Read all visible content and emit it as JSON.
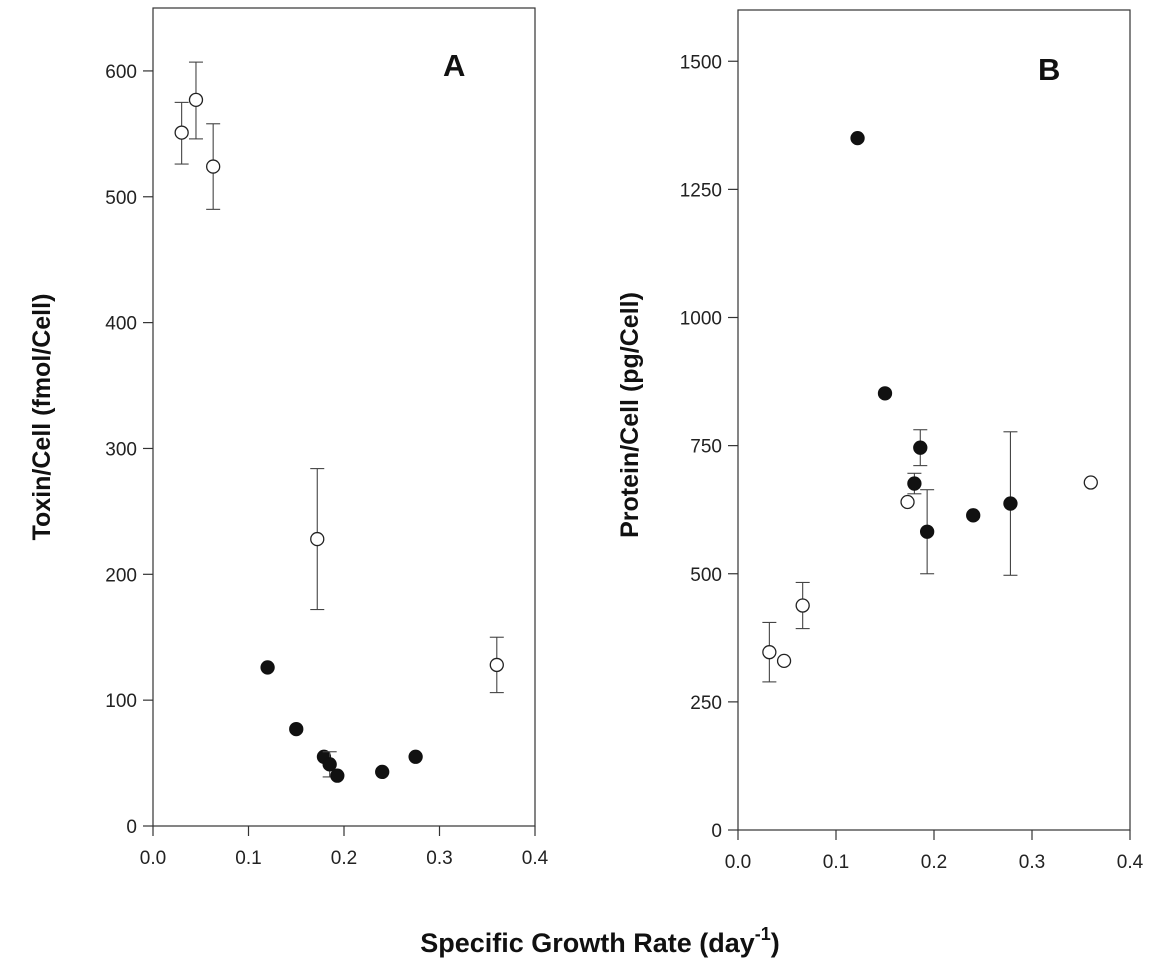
{
  "x_axis_label": "Specific Growth Rate (day",
  "x_axis_label_exponent": "-1",
  "x_axis_label_suffix": ")",
  "chart_data": [
    {
      "type": "scatter",
      "panel_label": "A",
      "ylabel": "Toxin/Cell (fmol/Cell)",
      "xlim": [
        0.0,
        0.4
      ],
      "ylim": [
        0,
        650
      ],
      "x_ticks": [
        "0.0",
        "0.1",
        "0.2",
        "0.3",
        "0.4"
      ],
      "y_ticks": [
        "0",
        "100",
        "200",
        "300",
        "400",
        "500",
        "600"
      ],
      "series": [
        {
          "marker": "open",
          "points": [
            {
              "x": 0.03,
              "y": 551,
              "err_lo": 25,
              "err_hi": 24
            },
            {
              "x": 0.045,
              "y": 577,
              "err_lo": 31,
              "err_hi": 30
            },
            {
              "x": 0.063,
              "y": 524,
              "err_lo": 34,
              "err_hi": 34
            },
            {
              "x": 0.172,
              "y": 228,
              "err_lo": 56,
              "err_hi": 56
            },
            {
              "x": 0.36,
              "y": 128,
              "err_lo": 22,
              "err_hi": 22
            }
          ]
        },
        {
          "marker": "filled",
          "points": [
            {
              "x": 0.12,
              "y": 126
            },
            {
              "x": 0.15,
              "y": 77
            },
            {
              "x": 0.179,
              "y": 55
            },
            {
              "x": 0.185,
              "y": 49,
              "err_lo": 10,
              "err_hi": 10
            },
            {
              "x": 0.193,
              "y": 40
            },
            {
              "x": 0.24,
              "y": 43
            },
            {
              "x": 0.275,
              "y": 55
            }
          ]
        }
      ]
    },
    {
      "type": "scatter",
      "panel_label": "B",
      "ylabel": "Protein/Cell (pg/Cell)",
      "xlim": [
        0.0,
        0.4
      ],
      "ylim": [
        0,
        1600
      ],
      "x_ticks": [
        "0.0",
        "0.1",
        "0.2",
        "0.3",
        "0.4"
      ],
      "y_ticks": [
        "0",
        "250",
        "500",
        "750",
        "1000",
        "1250",
        "1500"
      ],
      "series": [
        {
          "marker": "open",
          "points": [
            {
              "x": 0.032,
              "y": 347,
              "err_lo": 58,
              "err_hi": 58
            },
            {
              "x": 0.047,
              "y": 330
            },
            {
              "x": 0.066,
              "y": 438,
              "err_lo": 45,
              "err_hi": 45
            },
            {
              "x": 0.173,
              "y": 640
            },
            {
              "x": 0.36,
              "y": 678
            }
          ]
        },
        {
          "marker": "filled",
          "points": [
            {
              "x": 0.122,
              "y": 1350
            },
            {
              "x": 0.15,
              "y": 852
            },
            {
              "x": 0.18,
              "y": 676,
              "err_lo": 20,
              "err_hi": 20
            },
            {
              "x": 0.186,
              "y": 746,
              "err_lo": 35,
              "err_hi": 35
            },
            {
              "x": 0.193,
              "y": 582,
              "err_lo": 82,
              "err_hi": 82
            },
            {
              "x": 0.24,
              "y": 614
            },
            {
              "x": 0.278,
              "y": 637,
              "err_lo": 140,
              "err_hi": 140
            }
          ]
        }
      ]
    }
  ]
}
